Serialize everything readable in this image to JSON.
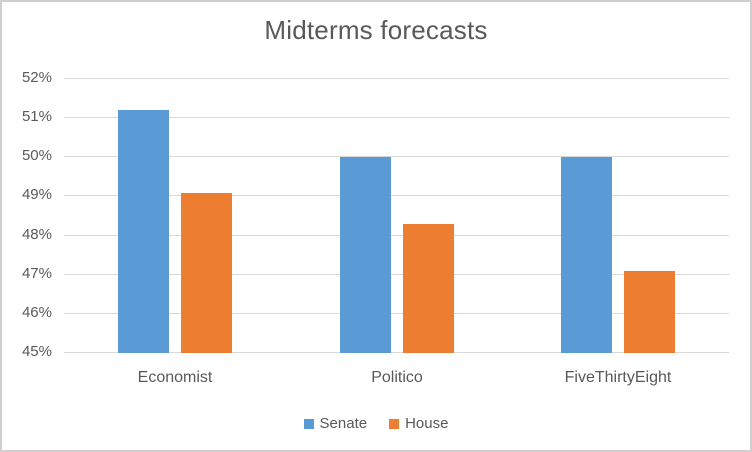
{
  "chart_data": {
    "type": "bar",
    "title": "Midterms forecasts",
    "categories": [
      "Economist",
      "Politico",
      "FiveThirtyEight"
    ],
    "series": [
      {
        "name": "Senate",
        "color": "#5b9bd5",
        "values": [
          51.2,
          50.0,
          50.0
        ]
      },
      {
        "name": "House",
        "color": "#ed7d31",
        "values": [
          49.1,
          48.3,
          47.1
        ]
      }
    ],
    "ylim": [
      45,
      52
    ],
    "yticks": [
      {
        "value": 45,
        "label": "45%"
      },
      {
        "value": 46,
        "label": "46%"
      },
      {
        "value": 47,
        "label": "47%"
      },
      {
        "value": 48,
        "label": "48%"
      },
      {
        "value": 49,
        "label": "49%"
      },
      {
        "value": 50,
        "label": "50%"
      },
      {
        "value": 51,
        "label": "51%"
      },
      {
        "value": 52,
        "label": "52%"
      }
    ],
    "grid": true,
    "legend_position": "bottom",
    "colors": {
      "text": "#595959",
      "gridline": "#d9d9d9",
      "border": "#d0cece",
      "background": "#ffffff"
    }
  }
}
